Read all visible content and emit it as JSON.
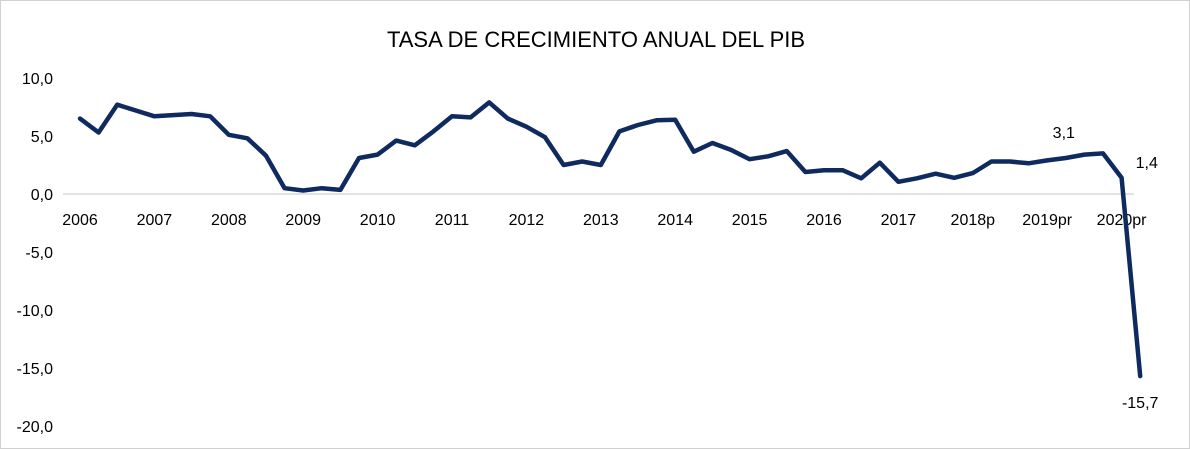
{
  "chart_data": {
    "type": "line",
    "title": "TASA DE CRECIMIENTO  ANUAL DEL PIB",
    "xlabel": "",
    "ylabel": "",
    "ylim": [
      -20,
      10
    ],
    "yticks": [
      "10,0",
      "5,0",
      "0,0",
      "-5,0",
      "-10,0",
      "-15,0",
      "-20,0"
    ],
    "ytick_values": [
      10,
      5,
      0,
      -5,
      -10,
      -15,
      -20
    ],
    "xtick_labels": [
      "2006",
      "2007",
      "2008",
      "2009",
      "2010",
      "2011",
      "2012",
      "2013",
      "2014",
      "2015",
      "2016",
      "2017",
      "2018p",
      "2019pr",
      "2020pr"
    ],
    "periods_per_label": 4,
    "grid": false,
    "line_color": "#0f2a5e",
    "series": [
      {
        "values": [
          6.5,
          5.3,
          7.7,
          7.2,
          6.7,
          6.8,
          6.9,
          6.7,
          5.1,
          4.8,
          3.3,
          0.5,
          0.3,
          0.5,
          0.35,
          3.1,
          3.4,
          4.6,
          4.2,
          5.4,
          6.7,
          6.6,
          7.9,
          6.5,
          5.8,
          4.9,
          2.5,
          2.8,
          2.5,
          5.4,
          5.95,
          6.35,
          6.4,
          3.65,
          4.4,
          3.8,
          3.0,
          3.25,
          3.7,
          1.9,
          2.05,
          2.05,
          1.35,
          2.7,
          1.05,
          1.35,
          1.75,
          1.4,
          1.8,
          2.8,
          2.8,
          2.65,
          2.9,
          3.1,
          3.4,
          3.5,
          1.4,
          -15.7
        ]
      }
    ],
    "data_labels": [
      {
        "index": 53,
        "text": "3,1"
      },
      {
        "index": 56,
        "text": "1,4"
      },
      {
        "index": 57,
        "text": "-15,7"
      }
    ]
  }
}
